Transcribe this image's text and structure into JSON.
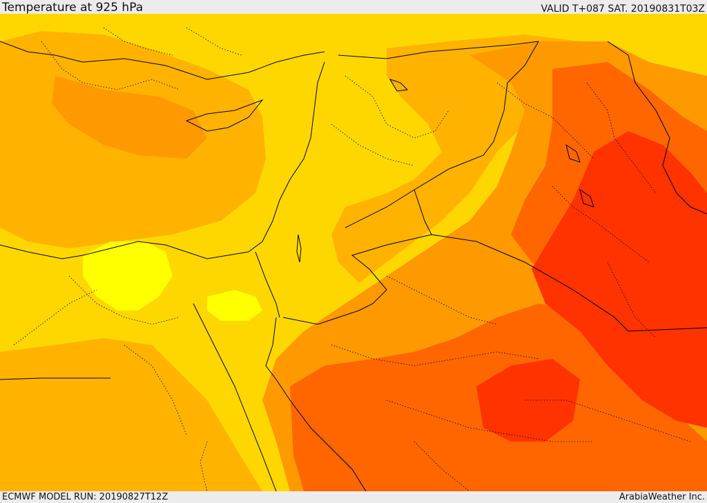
{
  "header": {
    "title": "Temperature at 925 hPa",
    "valid": "VALID T+087 SAT. 20190831T03Z"
  },
  "footer": {
    "model_run": "ECMWF MODEL RUN: 20190827T12Z",
    "credit": "ArabiaWeather Inc."
  },
  "map": {
    "field": "temperature-925hpa",
    "colors": {
      "pale_yellow": "#ffff00",
      "yellow": "#ffd700",
      "light_orange": "#ffb300",
      "orange": "#ff9900",
      "dark_orange": "#ff6600",
      "red_orange": "#ff3300",
      "red": "#ff2200",
      "border": "#000000"
    }
  }
}
